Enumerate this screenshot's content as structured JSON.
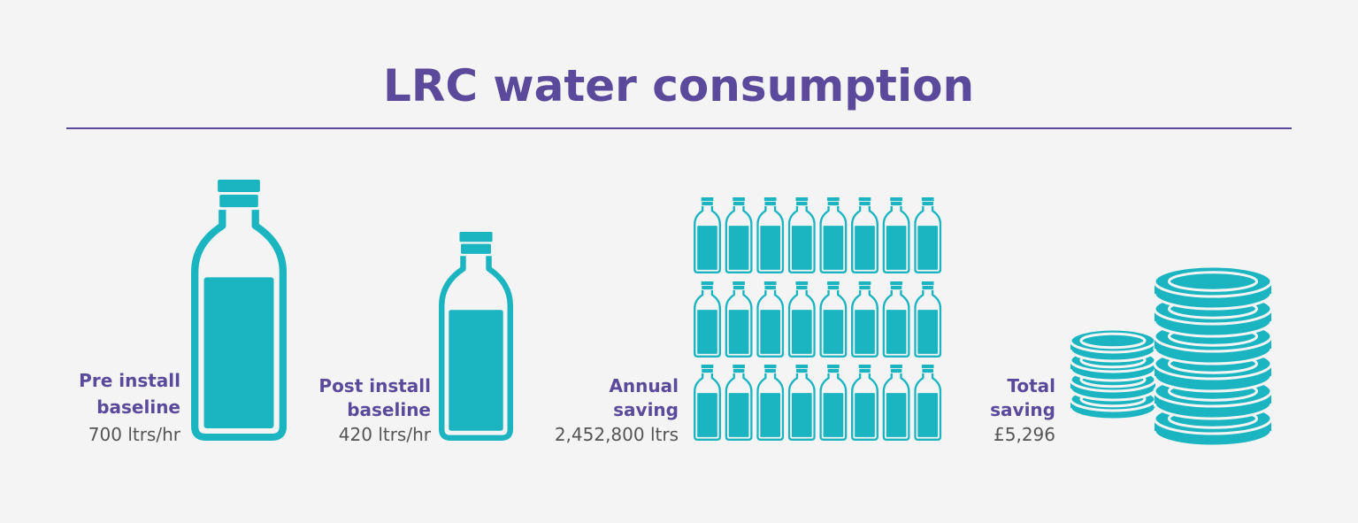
{
  "title": "LRC water consumption",
  "items": [
    {
      "label": [
        "Pre install",
        "baseline"
      ],
      "value": "700 ltrs/hr"
    },
    {
      "label": [
        "Post install",
        "baseline"
      ],
      "value": "420 ltrs/hr"
    },
    {
      "label": [
        "Annual",
        "saving"
      ],
      "value": "2,452,800 ltrs"
    },
    {
      "label": [
        "Total",
        "saving"
      ],
      "value": "£5,296"
    }
  ]
}
